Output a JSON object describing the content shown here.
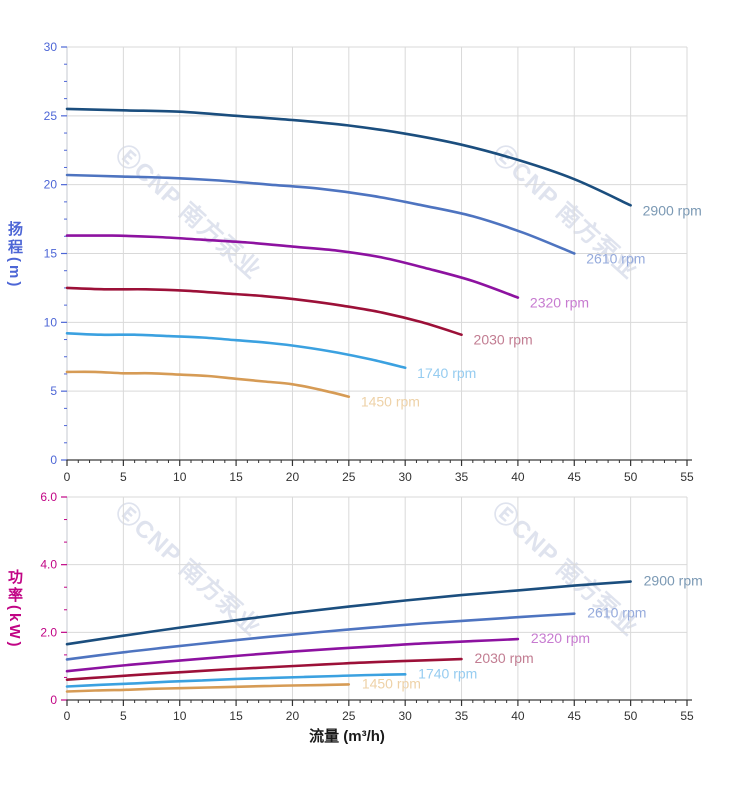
{
  "watermark": {
    "text": "ⒺCNP 南方泵业",
    "color": "#dfe3ee"
  },
  "grid_color": "#d9d9d9",
  "y_axis_line_color": "#c4c8d2",
  "axes": {
    "x": {
      "title": "流量 (m³/h)",
      "tick_labels": [
        "0",
        "5",
        "10",
        "15",
        "20",
        "25",
        "30",
        "35",
        "40",
        "45",
        "50",
        "55"
      ],
      "tick_color": "#333333",
      "title_color": "#1a1a1a",
      "line_color": "#3a3a3a"
    },
    "head_y": {
      "title": "扬程(m)",
      "tick_labels": [
        "0",
        "5",
        "10",
        "15",
        "20",
        "25",
        "30"
      ],
      "color": "#4d66d6"
    },
    "power_y": {
      "title": "功率(kW)",
      "tick_labels": [
        "0",
        "2.0",
        "4.0",
        "6.0"
      ],
      "color": "#c10585"
    }
  },
  "chart_data": [
    {
      "type": "line",
      "name": "head-vs-flow",
      "title": "",
      "xlabel": "流量 (m³/h)",
      "ylabel": "扬程(m)",
      "xlim": [
        0,
        55
      ],
      "ylim": [
        0,
        30
      ],
      "x_major_step": 5,
      "x_minor_step": 1,
      "y_major_step": 5,
      "y_minor_step": 1.25,
      "grid": true,
      "legend_position": "curve-end-labels",
      "series": [
        {
          "name": "2900 rpm",
          "color": "#1b4e7e",
          "label_color": "#7b99b4",
          "x": [
            0,
            5,
            10,
            15,
            20,
            25,
            30,
            35,
            40,
            45,
            50
          ],
          "y": [
            25.5,
            25.4,
            25.3,
            25.0,
            24.7,
            24.3,
            23.7,
            22.9,
            21.8,
            20.4,
            18.5
          ]
        },
        {
          "name": "2610 rpm",
          "color": "#4e74c0",
          "label_color": "#96abdc",
          "x": [
            0,
            4.5,
            9,
            13.5,
            18,
            22.5,
            27,
            31.5,
            36,
            40.5,
            45
          ],
          "y": [
            20.7,
            20.6,
            20.5,
            20.3,
            20.0,
            19.7,
            19.2,
            18.5,
            17.7,
            16.5,
            15.0
          ]
        },
        {
          "name": "2320 rpm",
          "color": "#8d12a0",
          "label_color": "#c77bd0",
          "x": [
            0,
            4,
            8,
            12,
            16,
            20,
            24,
            28,
            32,
            36,
            40
          ],
          "y": [
            16.3,
            16.3,
            16.2,
            16.0,
            15.8,
            15.5,
            15.2,
            14.7,
            13.9,
            13.0,
            11.8
          ]
        },
        {
          "name": "2030 rpm",
          "color": "#9c1038",
          "label_color": "#c27d92",
          "x": [
            0,
            3.5,
            7,
            10.5,
            14,
            17.5,
            21,
            24.5,
            28,
            31.5,
            35
          ],
          "y": [
            12.5,
            12.4,
            12.4,
            12.3,
            12.1,
            11.9,
            11.6,
            11.2,
            10.7,
            10.0,
            9.1
          ]
        },
        {
          "name": "1740 rpm",
          "color": "#3ba1e0",
          "label_color": "#96ccf0",
          "x": [
            0,
            3,
            6,
            9,
            12,
            15,
            18,
            21,
            24,
            27,
            30
          ],
          "y": [
            9.2,
            9.1,
            9.1,
            9.0,
            8.9,
            8.7,
            8.5,
            8.2,
            7.8,
            7.3,
            6.7
          ]
        },
        {
          "name": "1450 rpm",
          "color": "#d69b55",
          "label_color": "#eed2a8",
          "x": [
            0,
            2.5,
            5,
            7.5,
            10,
            12.5,
            15,
            17.5,
            20,
            22.5,
            25
          ],
          "y": [
            6.4,
            6.4,
            6.3,
            6.3,
            6.2,
            6.1,
            5.9,
            5.7,
            5.5,
            5.1,
            4.6
          ]
        }
      ]
    },
    {
      "type": "line",
      "name": "power-vs-flow",
      "title": "",
      "xlabel": "流量 (m³/h)",
      "ylabel": "功率(kW)",
      "xlim": [
        0,
        55
      ],
      "ylim": [
        0,
        6
      ],
      "x_major_step": 5,
      "x_minor_step": 1,
      "y_major_step": 2,
      "y_minor_step": 0.6667,
      "grid": true,
      "legend_position": "curve-end-labels",
      "series": [
        {
          "name": "2900 rpm",
          "color": "#1b4e7e",
          "label_color": "#7b99b4",
          "x": [
            0,
            5,
            10,
            15,
            20,
            25,
            30,
            35,
            40,
            45,
            50
          ],
          "y": [
            1.65,
            1.9,
            2.14,
            2.36,
            2.57,
            2.76,
            2.94,
            3.1,
            3.24,
            3.38,
            3.5
          ]
        },
        {
          "name": "2610 rpm",
          "color": "#4e74c0",
          "label_color": "#96abdc",
          "x": [
            0,
            4.5,
            9,
            13.5,
            18,
            22.5,
            27,
            31.5,
            36,
            40.5,
            45
          ],
          "y": [
            1.2,
            1.39,
            1.56,
            1.72,
            1.87,
            2.01,
            2.14,
            2.26,
            2.36,
            2.46,
            2.55
          ]
        },
        {
          "name": "2320 rpm",
          "color": "#8d12a0",
          "label_color": "#c77bd0",
          "x": [
            0,
            4,
            8,
            12,
            16,
            20,
            24,
            28,
            32,
            36,
            40
          ],
          "y": [
            0.85,
            0.99,
            1.11,
            1.22,
            1.33,
            1.43,
            1.52,
            1.6,
            1.68,
            1.74,
            1.8
          ]
        },
        {
          "name": "2030 rpm",
          "color": "#9c1038",
          "label_color": "#c27d92",
          "x": [
            0,
            3.5,
            7,
            10.5,
            14,
            17.5,
            21,
            24.5,
            28,
            31.5,
            35
          ],
          "y": [
            0.6,
            0.68,
            0.76,
            0.83,
            0.9,
            0.96,
            1.02,
            1.08,
            1.13,
            1.17,
            1.21
          ]
        },
        {
          "name": "1740 rpm",
          "color": "#3ba1e0",
          "label_color": "#96ccf0",
          "x": [
            0,
            3,
            6,
            9,
            12,
            15,
            18,
            21,
            24,
            27,
            30
          ],
          "y": [
            0.4,
            0.45,
            0.49,
            0.54,
            0.58,
            0.62,
            0.65,
            0.68,
            0.71,
            0.74,
            0.76
          ]
        },
        {
          "name": "1450 rpm",
          "color": "#d69b55",
          "label_color": "#eed2a8",
          "x": [
            0,
            2.5,
            5,
            7.5,
            10,
            12.5,
            15,
            17.5,
            20,
            22.5,
            25
          ],
          "y": [
            0.25,
            0.28,
            0.3,
            0.33,
            0.35,
            0.37,
            0.39,
            0.41,
            0.43,
            0.44,
            0.46
          ]
        }
      ]
    }
  ]
}
